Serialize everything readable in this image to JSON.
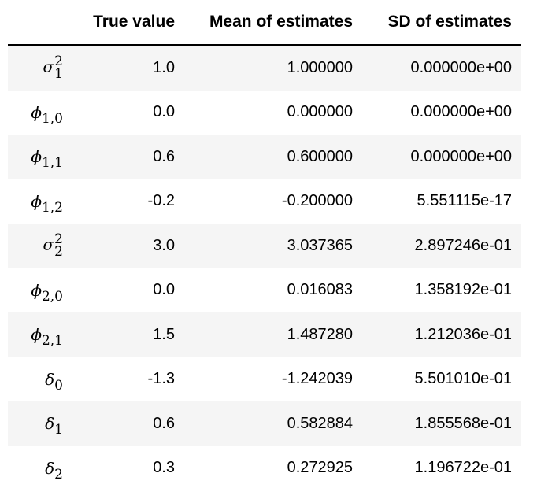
{
  "table": {
    "columns": [
      "",
      "True value",
      "Mean of estimates",
      "SD of estimates"
    ],
    "rows": [
      {
        "symbol": "σ",
        "sub": "1",
        "sup": "2",
        "true": "1.0",
        "mean": "1.000000",
        "sd": "0.000000e+00"
      },
      {
        "symbol": "ϕ",
        "sub": "1,0",
        "sup": "",
        "true": "0.0",
        "mean": "0.000000",
        "sd": "0.000000e+00"
      },
      {
        "symbol": "ϕ",
        "sub": "1,1",
        "sup": "",
        "true": "0.6",
        "mean": "0.600000",
        "sd": "0.000000e+00"
      },
      {
        "symbol": "ϕ",
        "sub": "1,2",
        "sup": "",
        "true": "-0.2",
        "mean": "-0.200000",
        "sd": "5.551115e-17"
      },
      {
        "symbol": "σ",
        "sub": "2",
        "sup": "2",
        "true": "3.0",
        "mean": "3.037365",
        "sd": "2.897246e-01"
      },
      {
        "symbol": "ϕ",
        "sub": "2,0",
        "sup": "",
        "true": "0.0",
        "mean": "0.016083",
        "sd": "1.358192e-01"
      },
      {
        "symbol": "ϕ",
        "sub": "2,1",
        "sup": "",
        "true": "1.5",
        "mean": "1.487280",
        "sd": "1.212036e-01"
      },
      {
        "symbol": "δ",
        "sub": "0",
        "sup": "",
        "true": "-1.3",
        "mean": "-1.242039",
        "sd": "5.501010e-01"
      },
      {
        "symbol": "δ",
        "sub": "1",
        "sup": "",
        "true": "0.6",
        "mean": "0.582884",
        "sd": "1.855568e-01"
      },
      {
        "symbol": "δ",
        "sub": "2",
        "sup": "",
        "true": "0.3",
        "mean": "0.272925",
        "sd": "1.196722e-01"
      }
    ]
  }
}
